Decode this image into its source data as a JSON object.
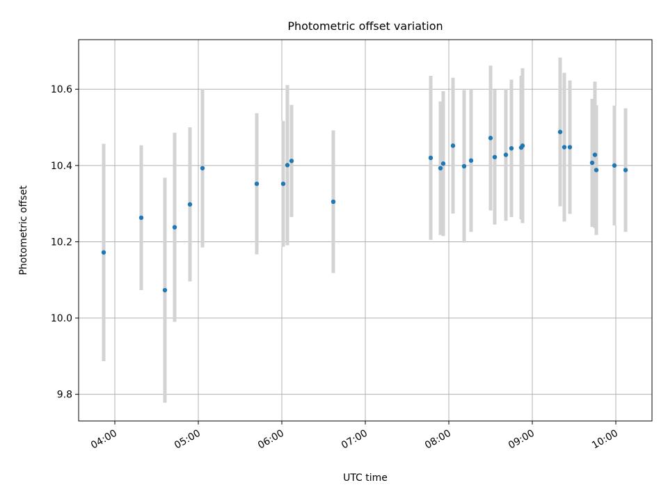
{
  "chart_data": {
    "type": "scatter",
    "title": "Photometric offset variation",
    "xlabel": "UTC time",
    "ylabel": "Photometric offset",
    "grid": true,
    "xlim": [
      "03:34",
      "10:26"
    ],
    "ylim": [
      9.73,
      10.73
    ],
    "x_ticks": [
      "04:00",
      "05:00",
      "06:00",
      "07:00",
      "08:00",
      "09:00",
      "10:00"
    ],
    "y_ticks": [
      "9.8",
      "10.0",
      "10.2",
      "10.4",
      "10.6"
    ],
    "marker_color": "#1f77b4",
    "errorbar_color": "#d3d3d3",
    "points": [
      {
        "x": "03:52",
        "y": 10.172,
        "yerr": 0.285
      },
      {
        "x": "04:19",
        "y": 10.263,
        "yerr": 0.19
      },
      {
        "x": "04:36",
        "y": 10.073,
        "yerr": 0.295
      },
      {
        "x": "04:43",
        "y": 10.238,
        "yerr": 0.248
      },
      {
        "x": "04:54",
        "y": 10.298,
        "yerr": 0.202
      },
      {
        "x": "05:03",
        "y": 10.393,
        "yerr": 0.208
      },
      {
        "x": "05:42",
        "y": 10.352,
        "yerr": 0.185
      },
      {
        "x": "06:01",
        "y": 10.352,
        "yerr": 0.165
      },
      {
        "x": "06:04",
        "y": 10.401,
        "yerr": 0.21
      },
      {
        "x": "06:07",
        "y": 10.412,
        "yerr": 0.147
      },
      {
        "x": "06:37",
        "y": 10.305,
        "yerr": 0.187
      },
      {
        "x": "07:47",
        "y": 10.42,
        "yerr": 0.215
      },
      {
        "x": "07:54",
        "y": 10.393,
        "yerr": 0.175
      },
      {
        "x": "07:56",
        "y": 10.405,
        "yerr": 0.19
      },
      {
        "x": "08:03",
        "y": 10.452,
        "yerr": 0.178
      },
      {
        "x": "08:11",
        "y": 10.398,
        "yerr": 0.2
      },
      {
        "x": "08:16",
        "y": 10.413,
        "yerr": 0.187
      },
      {
        "x": "08:30",
        "y": 10.472,
        "yerr": 0.19
      },
      {
        "x": "08:33",
        "y": 10.422,
        "yerr": 0.177
      },
      {
        "x": "08:41",
        "y": 10.428,
        "yerr": 0.173
      },
      {
        "x": "08:45",
        "y": 10.445,
        "yerr": 0.18
      },
      {
        "x": "08:52",
        "y": 10.447,
        "yerr": 0.188
      },
      {
        "x": "08:53",
        "y": 10.452,
        "yerr": 0.203
      },
      {
        "x": "09:20",
        "y": 10.488,
        "yerr": 0.195
      },
      {
        "x": "09:23",
        "y": 10.448,
        "yerr": 0.195
      },
      {
        "x": "09:27",
        "y": 10.448,
        "yerr": 0.175
      },
      {
        "x": "09:43",
        "y": 10.407,
        "yerr": 0.168
      },
      {
        "x": "09:45",
        "y": 10.428,
        "yerr": 0.192
      },
      {
        "x": "09:46",
        "y": 10.388,
        "yerr": 0.17
      },
      {
        "x": "09:59",
        "y": 10.4,
        "yerr": 0.157
      },
      {
        "x": "10:07",
        "y": 10.388,
        "yerr": 0.162
      }
    ]
  }
}
